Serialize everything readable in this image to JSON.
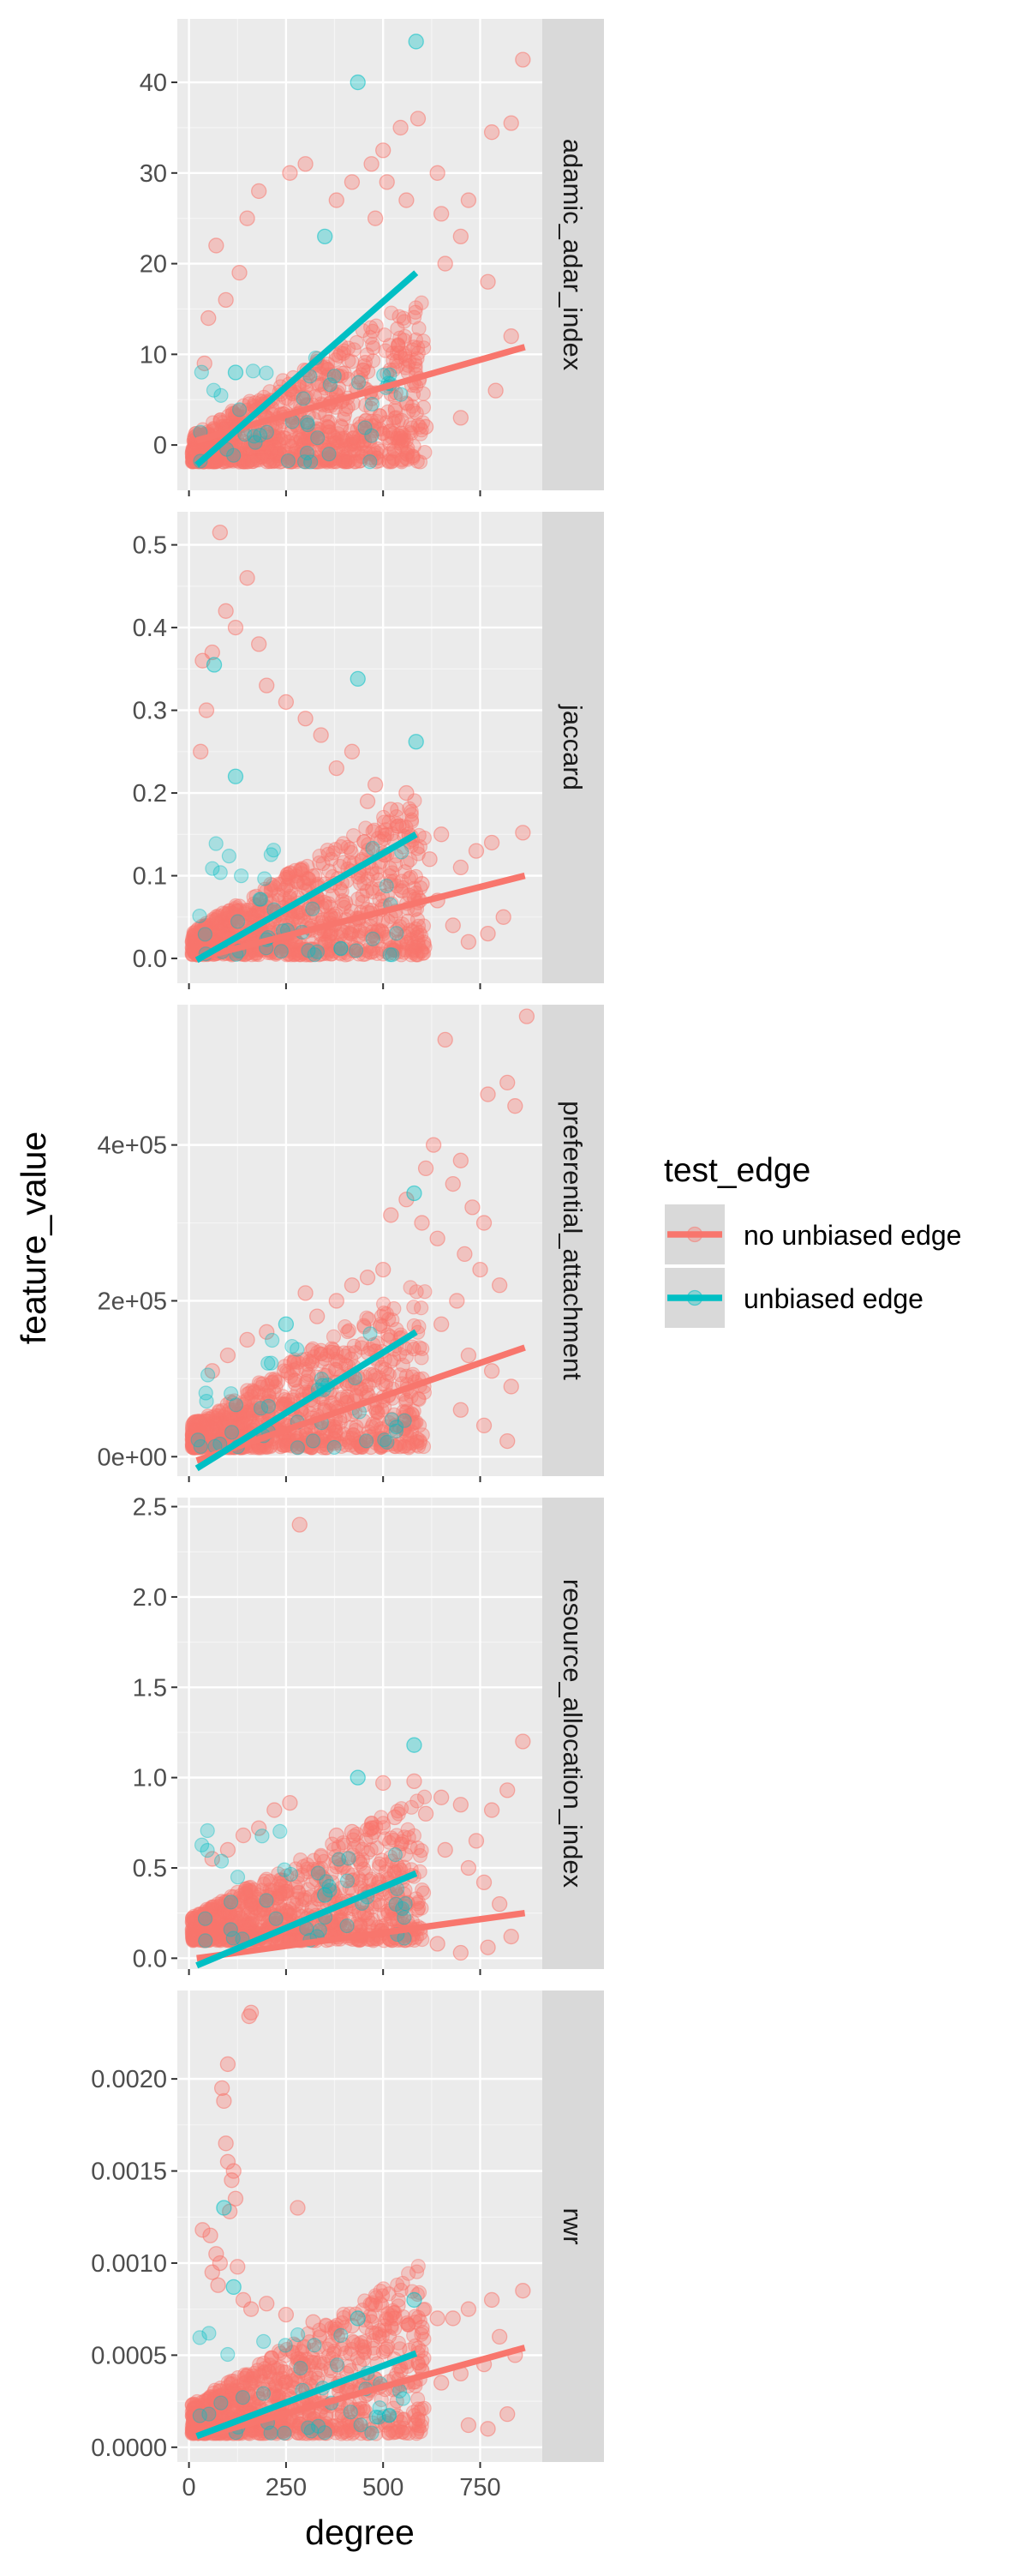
{
  "chart_data": {
    "type": "scatter",
    "xlabel": "degree",
    "ylabel": "feature_value",
    "xlim": [
      -30,
      910
    ],
    "x_ticks": [
      0,
      250,
      500,
      750
    ],
    "x_tick_labels": [
      "0",
      "250",
      "500",
      "750"
    ],
    "legend": {
      "title": "test_edge",
      "placement": "right",
      "entries": [
        {
          "label": "no unbiased edge",
          "color": "#F8766D"
        },
        {
          "label": "unbiased edge",
          "color": "#00BFC4"
        }
      ]
    },
    "panels": [
      {
        "facet": "adamic_adar_index",
        "ylim": [
          -5,
          47
        ],
        "y_ticks": [
          0,
          10,
          20,
          30,
          40
        ],
        "y_tick_labels": [
          "0",
          "10",
          "20",
          "30",
          "40"
        ],
        "fit_lines": [
          {
            "series": "no unbiased edge",
            "x": [
              20,
              865
            ],
            "y": [
              0.5,
              10.8
            ]
          },
          {
            "series": "unbiased edge",
            "x": [
              20,
              585
            ],
            "y": [
              -2.2,
              19.0
            ]
          }
        ],
        "outliers": [
          {
            "series": "unbiased edge",
            "points": [
              [
                585,
                44.5
              ],
              [
                435,
                40
              ],
              [
                350,
                23
              ],
              [
                120,
                8
              ]
            ]
          },
          {
            "series": "no unbiased edge",
            "points": [
              [
                860,
                42.5
              ],
              [
                830,
                35.5
              ],
              [
                780,
                34.5
              ],
              [
                590,
                36
              ],
              [
                545,
                35
              ],
              [
                500,
                32.5
              ],
              [
                470,
                31
              ],
              [
                510,
                29
              ],
              [
                640,
                30
              ],
              [
                720,
                27
              ],
              [
                700,
                23
              ],
              [
                660,
                20
              ],
              [
                770,
                18
              ],
              [
                830,
                12
              ],
              [
                790,
                6
              ],
              [
                700,
                3
              ],
              [
                610,
                2
              ],
              [
                540,
                1
              ],
              [
                420,
                29
              ],
              [
                380,
                27
              ],
              [
                300,
                31
              ],
              [
                260,
                30
              ],
              [
                180,
                28
              ],
              [
                150,
                25
              ],
              [
                130,
                19
              ],
              [
                95,
                16
              ],
              [
                70,
                22
              ],
              [
                50,
                14
              ],
              [
                40,
                9
              ],
              [
                650,
                25.5
              ],
              [
                560,
                27
              ],
              [
                480,
                25
              ]
            ]
          }
        ]
      },
      {
        "facet": "jaccard",
        "ylim": [
          -0.03,
          0.54
        ],
        "y_ticks": [
          0,
          0.1,
          0.2,
          0.3,
          0.4,
          0.5
        ],
        "y_tick_labels": [
          "0.0",
          "0.1",
          "0.2",
          "0.3",
          "0.4",
          "0.5"
        ],
        "fit_lines": [
          {
            "series": "no unbiased edge",
            "x": [
              20,
              865
            ],
            "y": [
              0.0,
              0.1
            ]
          },
          {
            "series": "unbiased edge",
            "x": [
              20,
              585
            ],
            "y": [
              -0.002,
              0.15
            ]
          }
        ],
        "outliers": [
          {
            "series": "unbiased edge",
            "points": [
              [
                435,
                0.338
              ],
              [
                585,
                0.262
              ],
              [
                65,
                0.355
              ],
              [
                120,
                0.22
              ]
            ]
          },
          {
            "series": "no unbiased edge",
            "points": [
              [
                80,
                0.515
              ],
              [
                150,
                0.46
              ],
              [
                95,
                0.42
              ],
              [
                120,
                0.4
              ],
              [
                60,
                0.37
              ],
              [
                35,
                0.36
              ],
              [
                180,
                0.38
              ],
              [
                200,
                0.33
              ],
              [
                250,
                0.31
              ],
              [
                300,
                0.29
              ],
              [
                340,
                0.27
              ],
              [
                45,
                0.3
              ],
              [
                30,
                0.25
              ],
              [
                860,
                0.152
              ],
              [
                780,
                0.14
              ],
              [
                740,
                0.13
              ],
              [
                700,
                0.11
              ],
              [
                650,
                0.15
              ],
              [
                620,
                0.12
              ],
              [
                560,
                0.2
              ],
              [
                520,
                0.18
              ],
              [
                480,
                0.21
              ],
              [
                420,
                0.25
              ],
              [
                380,
                0.23
              ],
              [
                810,
                0.05
              ],
              [
                770,
                0.03
              ],
              [
                720,
                0.02
              ],
              [
                680,
                0.04
              ],
              [
                640,
                0.07
              ],
              [
                600,
                0.09
              ],
              [
                540,
                0.16
              ],
              [
                460,
                0.19
              ]
            ]
          }
        ]
      },
      {
        "facet": "preferential_attachment",
        "ylim": [
          -25000,
          580000
        ],
        "y_ticks": [
          0,
          200000,
          400000
        ],
        "y_tick_labels": [
          "0e+00",
          "2e+05",
          "4e+05"
        ],
        "fit_lines": [
          {
            "series": "no unbiased edge",
            "x": [
              20,
              865
            ],
            "y": [
              -5000,
              140000
            ]
          },
          {
            "series": "unbiased edge",
            "x": [
              20,
              585
            ],
            "y": [
              -15000,
              160000
            ]
          }
        ],
        "outliers": [
          {
            "series": "unbiased edge",
            "points": [
              [
                580,
                338000
              ],
              [
                250,
                170000
              ]
            ]
          },
          {
            "series": "no unbiased edge",
            "points": [
              [
                870,
                565000
              ],
              [
                660,
                535000
              ],
              [
                820,
                480000
              ],
              [
                770,
                465000
              ],
              [
                840,
                450000
              ],
              [
                630,
                400000
              ],
              [
                610,
                370000
              ],
              [
                700,
                380000
              ],
              [
                680,
                350000
              ],
              [
                730,
                320000
              ],
              [
                560,
                330000
              ],
              [
                600,
                300000
              ],
              [
                520,
                310000
              ],
              [
                640,
                280000
              ],
              [
                760,
                300000
              ],
              [
                710,
                260000
              ],
              [
                750,
                240000
              ],
              [
                800,
                220000
              ],
              [
                690,
                200000
              ],
              [
                650,
                170000
              ],
              [
                720,
                130000
              ],
              [
                780,
                110000
              ],
              [
                830,
                90000
              ],
              [
                700,
                60000
              ],
              [
                760,
                40000
              ],
              [
                820,
                20000
              ],
              [
                500,
                240000
              ],
              [
                460,
                230000
              ],
              [
                420,
                220000
              ],
              [
                380,
                200000
              ],
              [
                330,
                180000
              ],
              [
                300,
                210000
              ],
              [
                200,
                160000
              ],
              [
                150,
                150000
              ],
              [
                100,
                130000
              ],
              [
                60,
                110000
              ]
            ]
          }
        ]
      },
      {
        "facet": "resource_allocation_index",
        "ylim": [
          -0.06,
          2.55
        ],
        "y_ticks": [
          0,
          0.5,
          1.0,
          1.5,
          2.0,
          2.5
        ],
        "y_tick_labels": [
          "0.0",
          "0.5",
          "1.0",
          "1.5",
          "2.0",
          "2.5"
        ],
        "fit_lines": [
          {
            "series": "no unbiased edge",
            "x": [
              20,
              865
            ],
            "y": [
              0.0,
              0.25
            ]
          },
          {
            "series": "unbiased edge",
            "x": [
              20,
              585
            ],
            "y": [
              -0.04,
              0.47
            ]
          }
        ],
        "outliers": [
          {
            "series": "unbiased edge",
            "points": [
              [
                580,
                1.18
              ],
              [
                435,
                1.0
              ],
              [
                350,
                0.35
              ]
            ]
          },
          {
            "series": "no unbiased edge",
            "points": [
              [
                285,
                2.4
              ],
              [
                860,
                1.2
              ],
              [
                820,
                0.93
              ],
              [
                500,
                0.97
              ],
              [
                580,
                0.98
              ],
              [
                650,
                0.89
              ],
              [
                700,
                0.85
              ],
              [
                780,
                0.82
              ],
              [
                610,
                0.8
              ],
              [
                530,
                0.78
              ],
              [
                470,
                0.72
              ],
              [
                420,
                0.7
              ],
              [
                380,
                0.68
              ],
              [
                260,
                0.86
              ],
              [
                220,
                0.82
              ],
              [
                180,
                0.72
              ],
              [
                140,
                0.68
              ],
              [
                100,
                0.6
              ],
              [
                60,
                0.55
              ],
              [
                740,
                0.65
              ],
              [
                660,
                0.6
              ],
              [
                720,
                0.5
              ],
              [
                760,
                0.42
              ],
              [
                800,
                0.3
              ],
              [
                830,
                0.12
              ],
              [
                770,
                0.06
              ],
              [
                700,
                0.03
              ],
              [
                640,
                0.08
              ]
            ]
          }
        ]
      },
      {
        "facet": "rwr",
        "ylim": [
          -8e-05,
          0.00248
        ],
        "y_ticks": [
          0,
          0.0005,
          0.001,
          0.0015,
          0.002
        ],
        "y_tick_labels": [
          "0.0000",
          "0.0005",
          "0.0010",
          "0.0015",
          "0.0020"
        ],
        "fit_lines": [
          {
            "series": "no unbiased edge",
            "x": [
              20,
              865
            ],
            "y": [
              5e-05,
              0.00054
            ]
          },
          {
            "series": "unbiased edge",
            "x": [
              20,
              585
            ],
            "y": [
              6e-05,
              0.00051
            ]
          }
        ],
        "outliers": [
          {
            "series": "unbiased edge",
            "points": [
              [
                90,
                0.0013
              ],
              [
                115,
                0.00087
              ],
              [
                435,
                0.0007
              ],
              [
                580,
                0.0008
              ]
            ]
          },
          {
            "series": "no unbiased edge",
            "points": [
              [
                160,
                0.00236
              ],
              [
                155,
                0.00234
              ],
              [
                100,
                0.00208
              ],
              [
                85,
                0.00195
              ],
              [
                90,
                0.00188
              ],
              [
                95,
                0.00165
              ],
              [
                100,
                0.00155
              ],
              [
                115,
                0.0015
              ],
              [
                110,
                0.00145
              ],
              [
                120,
                0.00135
              ],
              [
                280,
                0.0013
              ],
              [
                105,
                0.00128
              ],
              [
                35,
                0.00118
              ],
              [
                55,
                0.00115
              ],
              [
                70,
                0.00105
              ],
              [
                80,
                0.001
              ],
              [
                125,
                0.00098
              ],
              [
                60,
                0.00095
              ],
              [
                75,
                0.00088
              ],
              [
                140,
                0.0008
              ],
              [
                160,
                0.00075
              ],
              [
                200,
                0.00078
              ],
              [
                250,
                0.00072
              ],
              [
                860,
                0.00085
              ],
              [
                780,
                0.0008
              ],
              [
                720,
                0.00075
              ],
              [
                680,
                0.0007
              ],
              [
                640,
                0.0007
              ],
              [
                600,
                0.00065
              ],
              [
                530,
                0.0007
              ],
              [
                470,
                0.00068
              ],
              [
                420,
                0.00066
              ],
              [
                380,
                0.00064
              ],
              [
                320,
                0.00068
              ],
              [
                800,
                0.0006
              ],
              [
                840,
                0.0005
              ],
              [
                760,
                0.00045
              ],
              [
                700,
                0.0004
              ],
              [
                650,
                0.00035
              ],
              [
                720,
                0.00012
              ],
              [
                770,
                0.0001
              ],
              [
                820,
                0.00018
              ]
            ]
          }
        ]
      }
    ]
  }
}
